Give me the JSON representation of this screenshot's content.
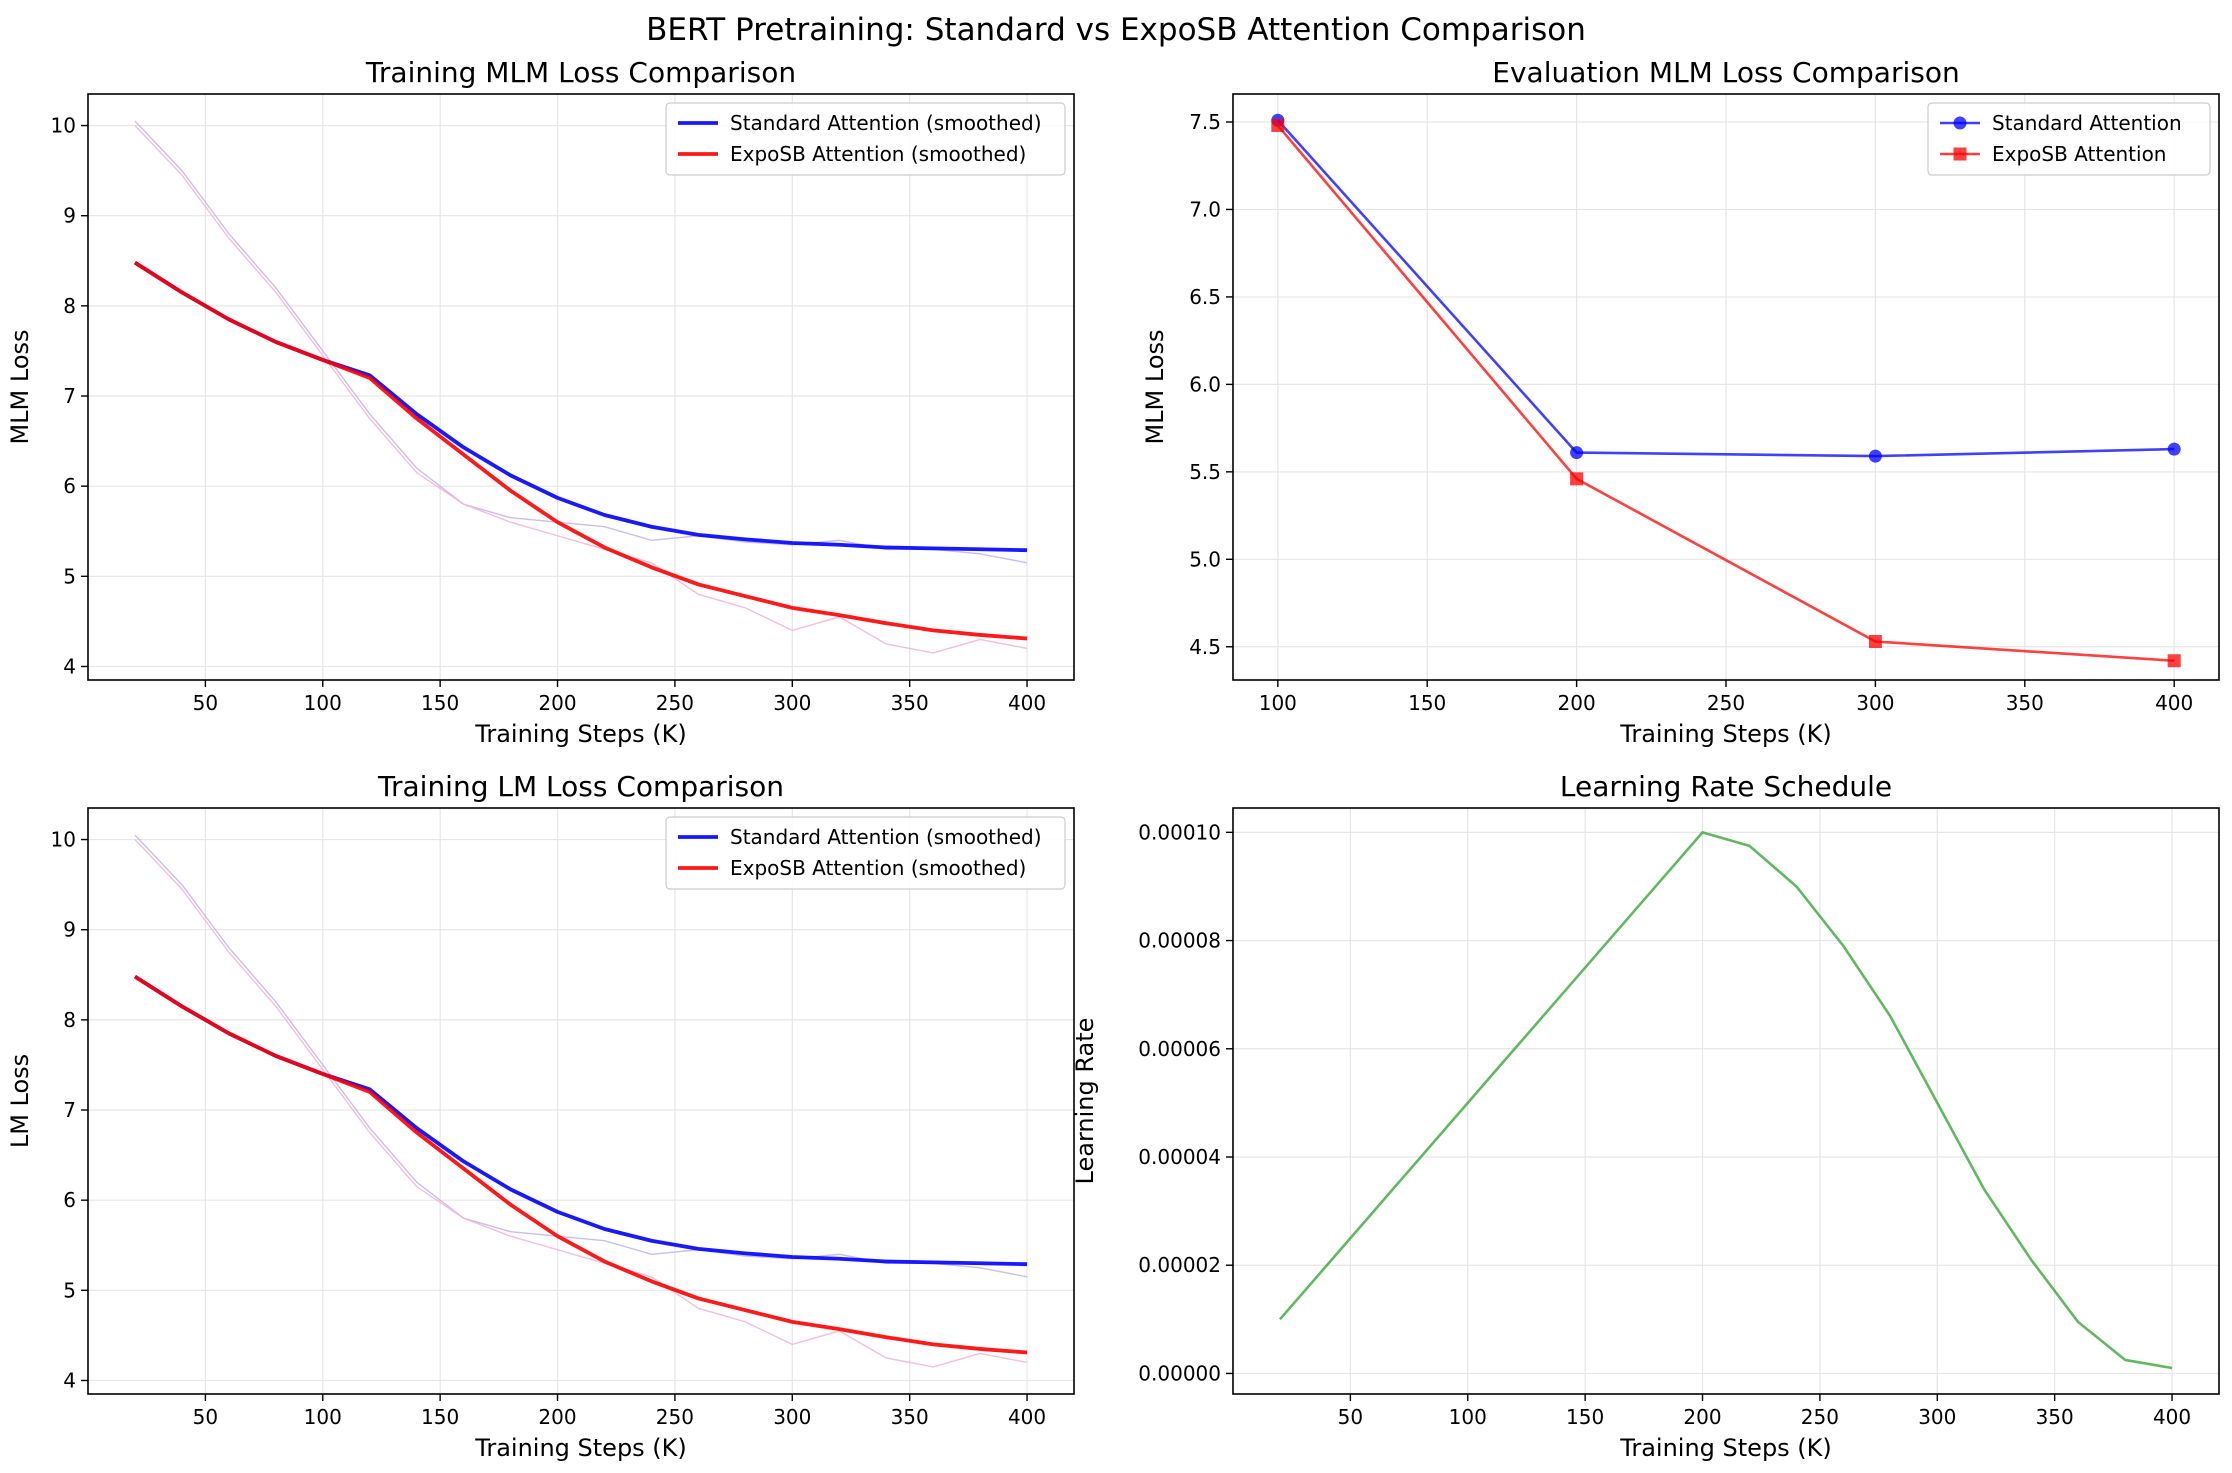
{
  "suptitle": "BERT Pretraining: Standard vs ExpoSB Attention Comparison",
  "colors": {
    "standard": "#0000ff",
    "exposb": "#ff0000",
    "lr": "#2ca02c",
    "raw_standard": "#c4b6ee",
    "raw_exposb": "#f4b6d6"
  },
  "chart_data": [
    {
      "id": "p1",
      "type": "line",
      "title": "Training MLM Loss Comparison",
      "xlabel": "Training Steps (K)",
      "ylabel": "MLM Loss",
      "xlim": [
        0,
        420
      ],
      "ylim": [
        3.85,
        10.35
      ],
      "xticks": [
        50,
        100,
        150,
        200,
        250,
        300,
        350,
        400
      ],
      "yticks": [
        4,
        5,
        6,
        7,
        8,
        9,
        10
      ],
      "grid": true,
      "legend": "upper-right",
      "x": [
        20,
        40,
        60,
        80,
        100,
        120,
        140,
        160,
        180,
        200,
        220,
        240,
        260,
        280,
        300,
        320,
        340,
        360,
        380,
        400
      ],
      "raw_series": [
        {
          "key": "standard",
          "values": [
            10.05,
            9.5,
            8.8,
            8.2,
            7.5,
            6.8,
            6.2,
            5.8,
            5.65,
            5.6,
            5.55,
            5.4,
            5.45,
            5.38,
            5.35,
            5.4,
            5.3,
            5.3,
            5.25,
            5.15
          ]
        },
        {
          "key": "exposb",
          "values": [
            10.0,
            9.45,
            8.75,
            8.15,
            7.45,
            6.75,
            6.15,
            5.8,
            5.6,
            5.45,
            5.3,
            5.15,
            4.8,
            4.65,
            4.4,
            4.55,
            4.25,
            4.15,
            4.3,
            4.2
          ]
        }
      ],
      "series": [
        {
          "key": "standard",
          "name": "Standard Attention (smoothed)",
          "values": [
            8.48,
            8.15,
            7.85,
            7.6,
            7.4,
            7.23,
            6.8,
            6.43,
            6.12,
            5.87,
            5.68,
            5.55,
            5.46,
            5.41,
            5.37,
            5.35,
            5.32,
            5.31,
            5.3,
            5.29
          ]
        },
        {
          "key": "exposb",
          "name": "ExpoSB Attention (smoothed)",
          "values": [
            8.48,
            8.15,
            7.85,
            7.6,
            7.4,
            7.2,
            6.75,
            6.35,
            5.95,
            5.6,
            5.32,
            5.1,
            4.91,
            4.78,
            4.65,
            4.57,
            4.48,
            4.4,
            4.35,
            4.31
          ]
        }
      ]
    },
    {
      "id": "p2",
      "type": "line",
      "title": "Evaluation MLM Loss Comparison",
      "xlabel": "Training Steps (K)",
      "ylabel": "MLM Loss",
      "xlim": [
        85,
        415
      ],
      "ylim": [
        4.31,
        7.66
      ],
      "xticks": [
        100,
        150,
        200,
        250,
        300,
        350,
        400
      ],
      "yticks": [
        4.5,
        5.0,
        5.5,
        6.0,
        6.5,
        7.0,
        7.5
      ],
      "yprecision": 1,
      "grid": true,
      "legend": "upper-right",
      "x": [
        100,
        200,
        300,
        400
      ],
      "series": [
        {
          "key": "standard",
          "name": "Standard Attention",
          "marker": "circle",
          "values": [
            7.51,
            5.61,
            5.59,
            5.63
          ]
        },
        {
          "key": "exposb",
          "name": "ExpoSB Attention",
          "marker": "square",
          "values": [
            7.48,
            5.46,
            4.53,
            4.42
          ]
        }
      ]
    },
    {
      "id": "p3",
      "type": "line",
      "title": "Training LM Loss Comparison",
      "xlabel": "Training Steps (K)",
      "ylabel": "LM Loss",
      "xlim": [
        0,
        420
      ],
      "ylim": [
        3.85,
        10.35
      ],
      "xticks": [
        50,
        100,
        150,
        200,
        250,
        300,
        350,
        400
      ],
      "yticks": [
        4,
        5,
        6,
        7,
        8,
        9,
        10
      ],
      "grid": true,
      "legend": "upper-right",
      "x": [
        20,
        40,
        60,
        80,
        100,
        120,
        140,
        160,
        180,
        200,
        220,
        240,
        260,
        280,
        300,
        320,
        340,
        360,
        380,
        400
      ],
      "raw_series": [
        {
          "key": "standard",
          "values": [
            10.05,
            9.5,
            8.8,
            8.2,
            7.5,
            6.8,
            6.2,
            5.8,
            5.65,
            5.6,
            5.55,
            5.4,
            5.45,
            5.38,
            5.35,
            5.4,
            5.3,
            5.3,
            5.25,
            5.15
          ]
        },
        {
          "key": "exposb",
          "values": [
            10.0,
            9.45,
            8.75,
            8.15,
            7.45,
            6.75,
            6.15,
            5.8,
            5.6,
            5.45,
            5.3,
            5.15,
            4.8,
            4.65,
            4.4,
            4.55,
            4.25,
            4.15,
            4.3,
            4.2
          ]
        }
      ],
      "series": [
        {
          "key": "standard",
          "name": "Standard Attention (smoothed)",
          "values": [
            8.48,
            8.15,
            7.85,
            7.6,
            7.4,
            7.23,
            6.8,
            6.43,
            6.12,
            5.87,
            5.68,
            5.55,
            5.46,
            5.41,
            5.37,
            5.35,
            5.32,
            5.31,
            5.3,
            5.29
          ]
        },
        {
          "key": "exposb",
          "name": "ExpoSB Attention (smoothed)",
          "values": [
            8.48,
            8.15,
            7.85,
            7.6,
            7.4,
            7.2,
            6.75,
            6.35,
            5.95,
            5.6,
            5.32,
            5.1,
            4.91,
            4.78,
            4.65,
            4.57,
            4.48,
            4.4,
            4.35,
            4.31
          ]
        }
      ]
    },
    {
      "id": "p4",
      "type": "line",
      "title": "Learning Rate Schedule",
      "xlabel": "Training Steps (K)",
      "ylabel": "Learning Rate",
      "xlim": [
        0,
        420
      ],
      "ylim": [
        -3.8e-06,
        0.0001045
      ],
      "xticks": [
        50,
        100,
        150,
        200,
        250,
        300,
        350,
        400
      ],
      "yticks": [
        0,
        2e-05,
        4e-05,
        6e-05,
        8e-05,
        0.0001
      ],
      "yprecision": 5,
      "grid": true,
      "x": [
        20,
        40,
        60,
        80,
        100,
        120,
        140,
        160,
        180,
        200,
        220,
        240,
        260,
        280,
        300,
        320,
        340,
        360,
        380,
        400
      ],
      "series": [
        {
          "key": "lr",
          "values": [
            1e-05,
            2e-05,
            3e-05,
            4e-05,
            5e-05,
            6e-05,
            7e-05,
            8e-05,
            9e-05,
            0.0001,
            9.75e-05,
            9e-05,
            7.9e-05,
            6.6e-05,
            5e-05,
            3.4e-05,
            2.1e-05,
            9.5e-06,
            2.5e-06,
            1e-06
          ]
        }
      ]
    }
  ]
}
